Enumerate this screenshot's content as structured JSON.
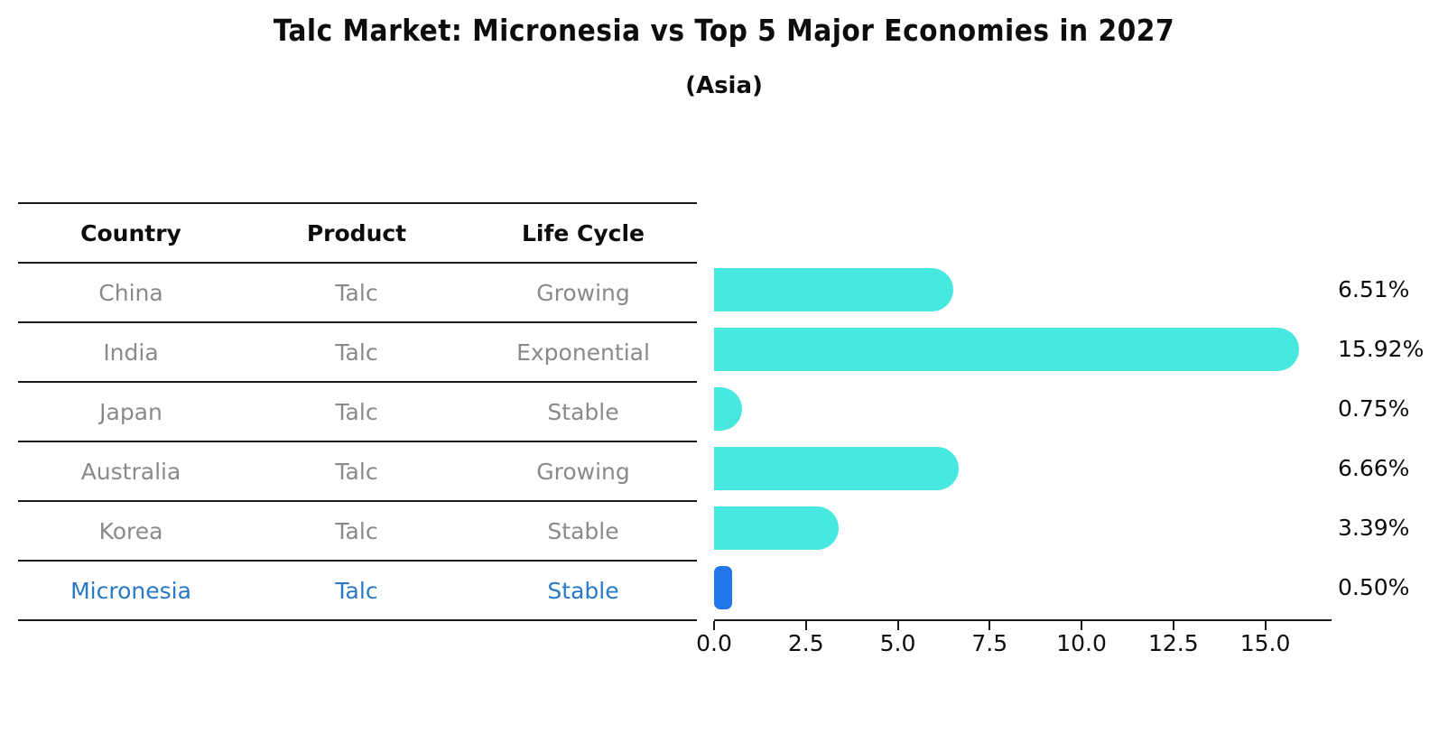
{
  "title": "Talc Market: Micronesia vs Top 5 Major Economies in 2027",
  "subtitle": "(Asia)",
  "table": {
    "headers": [
      "Country",
      "Product",
      "Life Cycle"
    ],
    "rows": [
      {
        "country": "China",
        "product": "Talc",
        "life_cycle": "Growing",
        "share_label": "6.51%"
      },
      {
        "country": "India",
        "product": "Talc",
        "life_cycle": "Exponential",
        "share_label": "15.92%"
      },
      {
        "country": "Japan",
        "product": "Talc",
        "life_cycle": "Stable",
        "share_label": "0.75%"
      },
      {
        "country": "Australia",
        "product": "Talc",
        "life_cycle": "Growing",
        "share_label": "6.66%"
      },
      {
        "country": "Korea",
        "product": "Talc",
        "life_cycle": "Stable",
        "share_label": "3.39%"
      },
      {
        "country": "Micronesia",
        "product": "Talc",
        "life_cycle": "Stable",
        "share_label": "0.50%"
      }
    ]
  },
  "chart_data": {
    "type": "bar",
    "orientation": "horizontal",
    "title": "Talc Market: Micronesia vs Top 5 Major Economies in 2027",
    "subtitle": "(Asia)",
    "categories": [
      "China",
      "India",
      "Japan",
      "Australia",
      "Korea",
      "Micronesia"
    ],
    "values": [
      6.51,
      15.92,
      0.75,
      6.66,
      3.39,
      0.5
    ],
    "value_labels": [
      "6.51%",
      "15.92%",
      "0.75%",
      "6.66%",
      "3.39%",
      "0.50%"
    ],
    "unit": "%",
    "xticks": [
      "0.0",
      "2.5",
      "5.0",
      "7.5",
      "10.0",
      "12.5",
      "15.0"
    ],
    "xtick_values": [
      0,
      2.5,
      5,
      7.5,
      10,
      12.5,
      15
    ],
    "xlim": [
      0,
      16.78
    ],
    "xlabel": "",
    "ylabel": "",
    "grid": false,
    "legend": null,
    "highlight_category": "Micronesia"
  },
  "colors": {
    "bar": "#47e8e0",
    "highlight_bar": "#2277e8",
    "row_text": "#8a8a8a",
    "highlight_text": "#2879c8",
    "axis": "#1a1a1a"
  }
}
